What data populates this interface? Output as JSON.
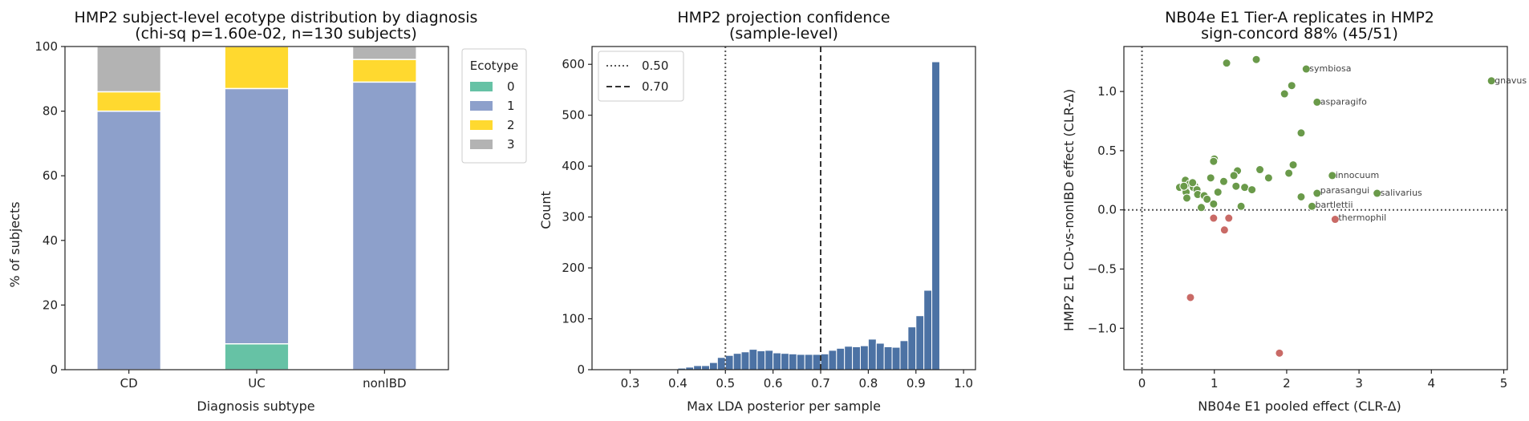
{
  "chart_data": [
    {
      "type": "bar",
      "stacked": true,
      "title": "HMP2 subject-level ecotype distribution by diagnosis",
      "subtitle": "(chi-sq p=1.60e-02, n=130 subjects)",
      "xlabel": "Diagnosis subtype",
      "ylabel": "% of subjects",
      "ylim": [
        0,
        100
      ],
      "yticks": [
        "0",
        "20",
        "40",
        "60",
        "80",
        "100"
      ],
      "categories": [
        "CD",
        "UC",
        "nonIBD"
      ],
      "legend_title": "Ecotype",
      "legend_position": "outside-right",
      "series": [
        {
          "name": "0",
          "color": "#66c2a5",
          "values": [
            0,
            8,
            0
          ]
        },
        {
          "name": "1",
          "color": "#8da0cb",
          "values": [
            80,
            79,
            89
          ]
        },
        {
          "name": "2",
          "color": "#ffd92f",
          "values": [
            6,
            13,
            7
          ]
        },
        {
          "name": "3",
          "color": "#b3b3b3",
          "values": [
            14,
            0,
            4
          ]
        }
      ]
    },
    {
      "type": "bar",
      "title": "HMP2 projection confidence",
      "subtitle": "(sample-level)",
      "xlabel": "Max LDA posterior per sample",
      "ylabel": "Count",
      "xlim": [
        0.22,
        1.025
      ],
      "ylim": [
        0,
        635
      ],
      "xticks": [
        "0.3",
        "0.4",
        "0.5",
        "0.6",
        "0.7",
        "0.8",
        "0.9",
        "1.0"
      ],
      "yticks": [
        "0",
        "100",
        "200",
        "300",
        "400",
        "500",
        "600"
      ],
      "bin_width": 0.0167,
      "bar_color": "#4c72a4",
      "bin_starts": [
        0.35,
        0.3667,
        0.3833,
        0.4,
        0.4167,
        0.4333,
        0.45,
        0.4667,
        0.4833,
        0.5,
        0.5167,
        0.5333,
        0.55,
        0.5667,
        0.5833,
        0.6,
        0.6167,
        0.6333,
        0.65,
        0.6667,
        0.6833,
        0.7,
        0.7167,
        0.7333,
        0.75,
        0.7667,
        0.7833,
        0.8,
        0.8167,
        0.8333,
        0.85,
        0.8667,
        0.8833,
        0.9,
        0.9167,
        0.9333,
        0.95,
        0.9667,
        0.9833
      ],
      "counts": [
        1,
        1,
        1,
        3,
        5,
        8,
        8,
        14,
        24,
        28,
        32,
        35,
        40,
        37,
        38,
        33,
        32,
        31,
        30,
        30,
        30,
        31,
        38,
        42,
        46,
        45,
        47,
        60,
        52,
        45,
        44,
        57,
        84,
        106,
        156,
        605,
        0,
        0,
        0
      ],
      "reference_lines": [
        {
          "label": "0.50",
          "x": 0.5,
          "style": "dotted"
        },
        {
          "label": "0.70",
          "x": 0.7,
          "style": "dashed"
        }
      ],
      "legend_position": "top-left"
    },
    {
      "type": "scatter",
      "title": "NB04e E1 Tier-A replicates in HMP2",
      "subtitle": "sign-concord 88% (45/51)",
      "xlabel": "NB04e E1 pooled effect (CLR-Δ)",
      "ylabel": "HMP2 E1 CD-vs-nonIBD effect (CLR-Δ)",
      "xlim": [
        -0.25,
        5.05
      ],
      "ylim": [
        -1.35,
        1.38
      ],
      "xticks": [
        "0",
        "1",
        "2",
        "3",
        "4",
        "5"
      ],
      "yticks": [
        "−1.0",
        "−0.5",
        "0.0",
        "0.5",
        "1.0"
      ],
      "concordant_color": "#6a9a4a",
      "discordant_color": "#c96a66",
      "concordant": [
        [
          4.83,
          1.09
        ],
        [
          1.17,
          1.24
        ],
        [
          1.58,
          1.27
        ],
        [
          2.27,
          1.19
        ],
        [
          2.07,
          1.05
        ],
        [
          1.97,
          0.98
        ],
        [
          2.42,
          0.91
        ],
        [
          2.2,
          0.65
        ],
        [
          1.0,
          0.43
        ],
        [
          0.99,
          0.41
        ],
        [
          2.09,
          0.38
        ],
        [
          1.32,
          0.33
        ],
        [
          1.63,
          0.34
        ],
        [
          2.63,
          0.29
        ],
        [
          1.27,
          0.29
        ],
        [
          0.95,
          0.27
        ],
        [
          1.13,
          0.24
        ],
        [
          0.6,
          0.25
        ],
        [
          0.68,
          0.21
        ],
        [
          0.73,
          0.2
        ],
        [
          0.66,
          0.22
        ],
        [
          0.71,
          0.19
        ],
        [
          2.03,
          0.31
        ],
        [
          1.75,
          0.27
        ],
        [
          0.52,
          0.19
        ],
        [
          0.6,
          0.17
        ],
        [
          0.76,
          0.17
        ],
        [
          1.42,
          0.19
        ],
        [
          1.3,
          0.2
        ],
        [
          1.52,
          0.17
        ],
        [
          3.25,
          0.14
        ],
        [
          2.42,
          0.14
        ],
        [
          0.61,
          0.15
        ],
        [
          0.77,
          0.13
        ],
        [
          0.86,
          0.12
        ],
        [
          0.9,
          0.09
        ],
        [
          2.2,
          0.11
        ],
        [
          0.62,
          0.1
        ],
        [
          0.99,
          0.05
        ],
        [
          1.37,
          0.03
        ],
        [
          0.82,
          0.02
        ],
        [
          2.35,
          0.03
        ],
        [
          1.05,
          0.15
        ],
        [
          0.7,
          0.23
        ],
        [
          0.58,
          0.2
        ]
      ],
      "discordant": [
        [
          0.99,
          -0.07
        ],
        [
          1.2,
          -0.07
        ],
        [
          1.14,
          -0.17
        ],
        [
          2.67,
          -0.08
        ],
        [
          0.67,
          -0.74
        ],
        [
          1.9,
          -1.21
        ]
      ],
      "annotations": [
        {
          "text": "gnavus",
          "x": 4.83,
          "y": 1.09
        },
        {
          "text": "symbiosa",
          "x": 2.27,
          "y": 1.19
        },
        {
          "text": "asparagifo",
          "x": 2.42,
          "y": 0.91
        },
        {
          "text": "innocuum",
          "x": 2.63,
          "y": 0.29
        },
        {
          "text": "parasangui",
          "x": 2.42,
          "y": 0.16
        },
        {
          "text": "salivarius",
          "x": 3.25,
          "y": 0.14
        },
        {
          "text": "bartlettii",
          "x": 2.35,
          "y": 0.04
        },
        {
          "text": "thermophil",
          "x": 2.67,
          "y": -0.07
        }
      ],
      "reference_lines": [
        {
          "axis": "x",
          "value": 0,
          "style": "dotted"
        },
        {
          "axis": "y",
          "value": 0,
          "style": "dotted"
        }
      ]
    }
  ]
}
